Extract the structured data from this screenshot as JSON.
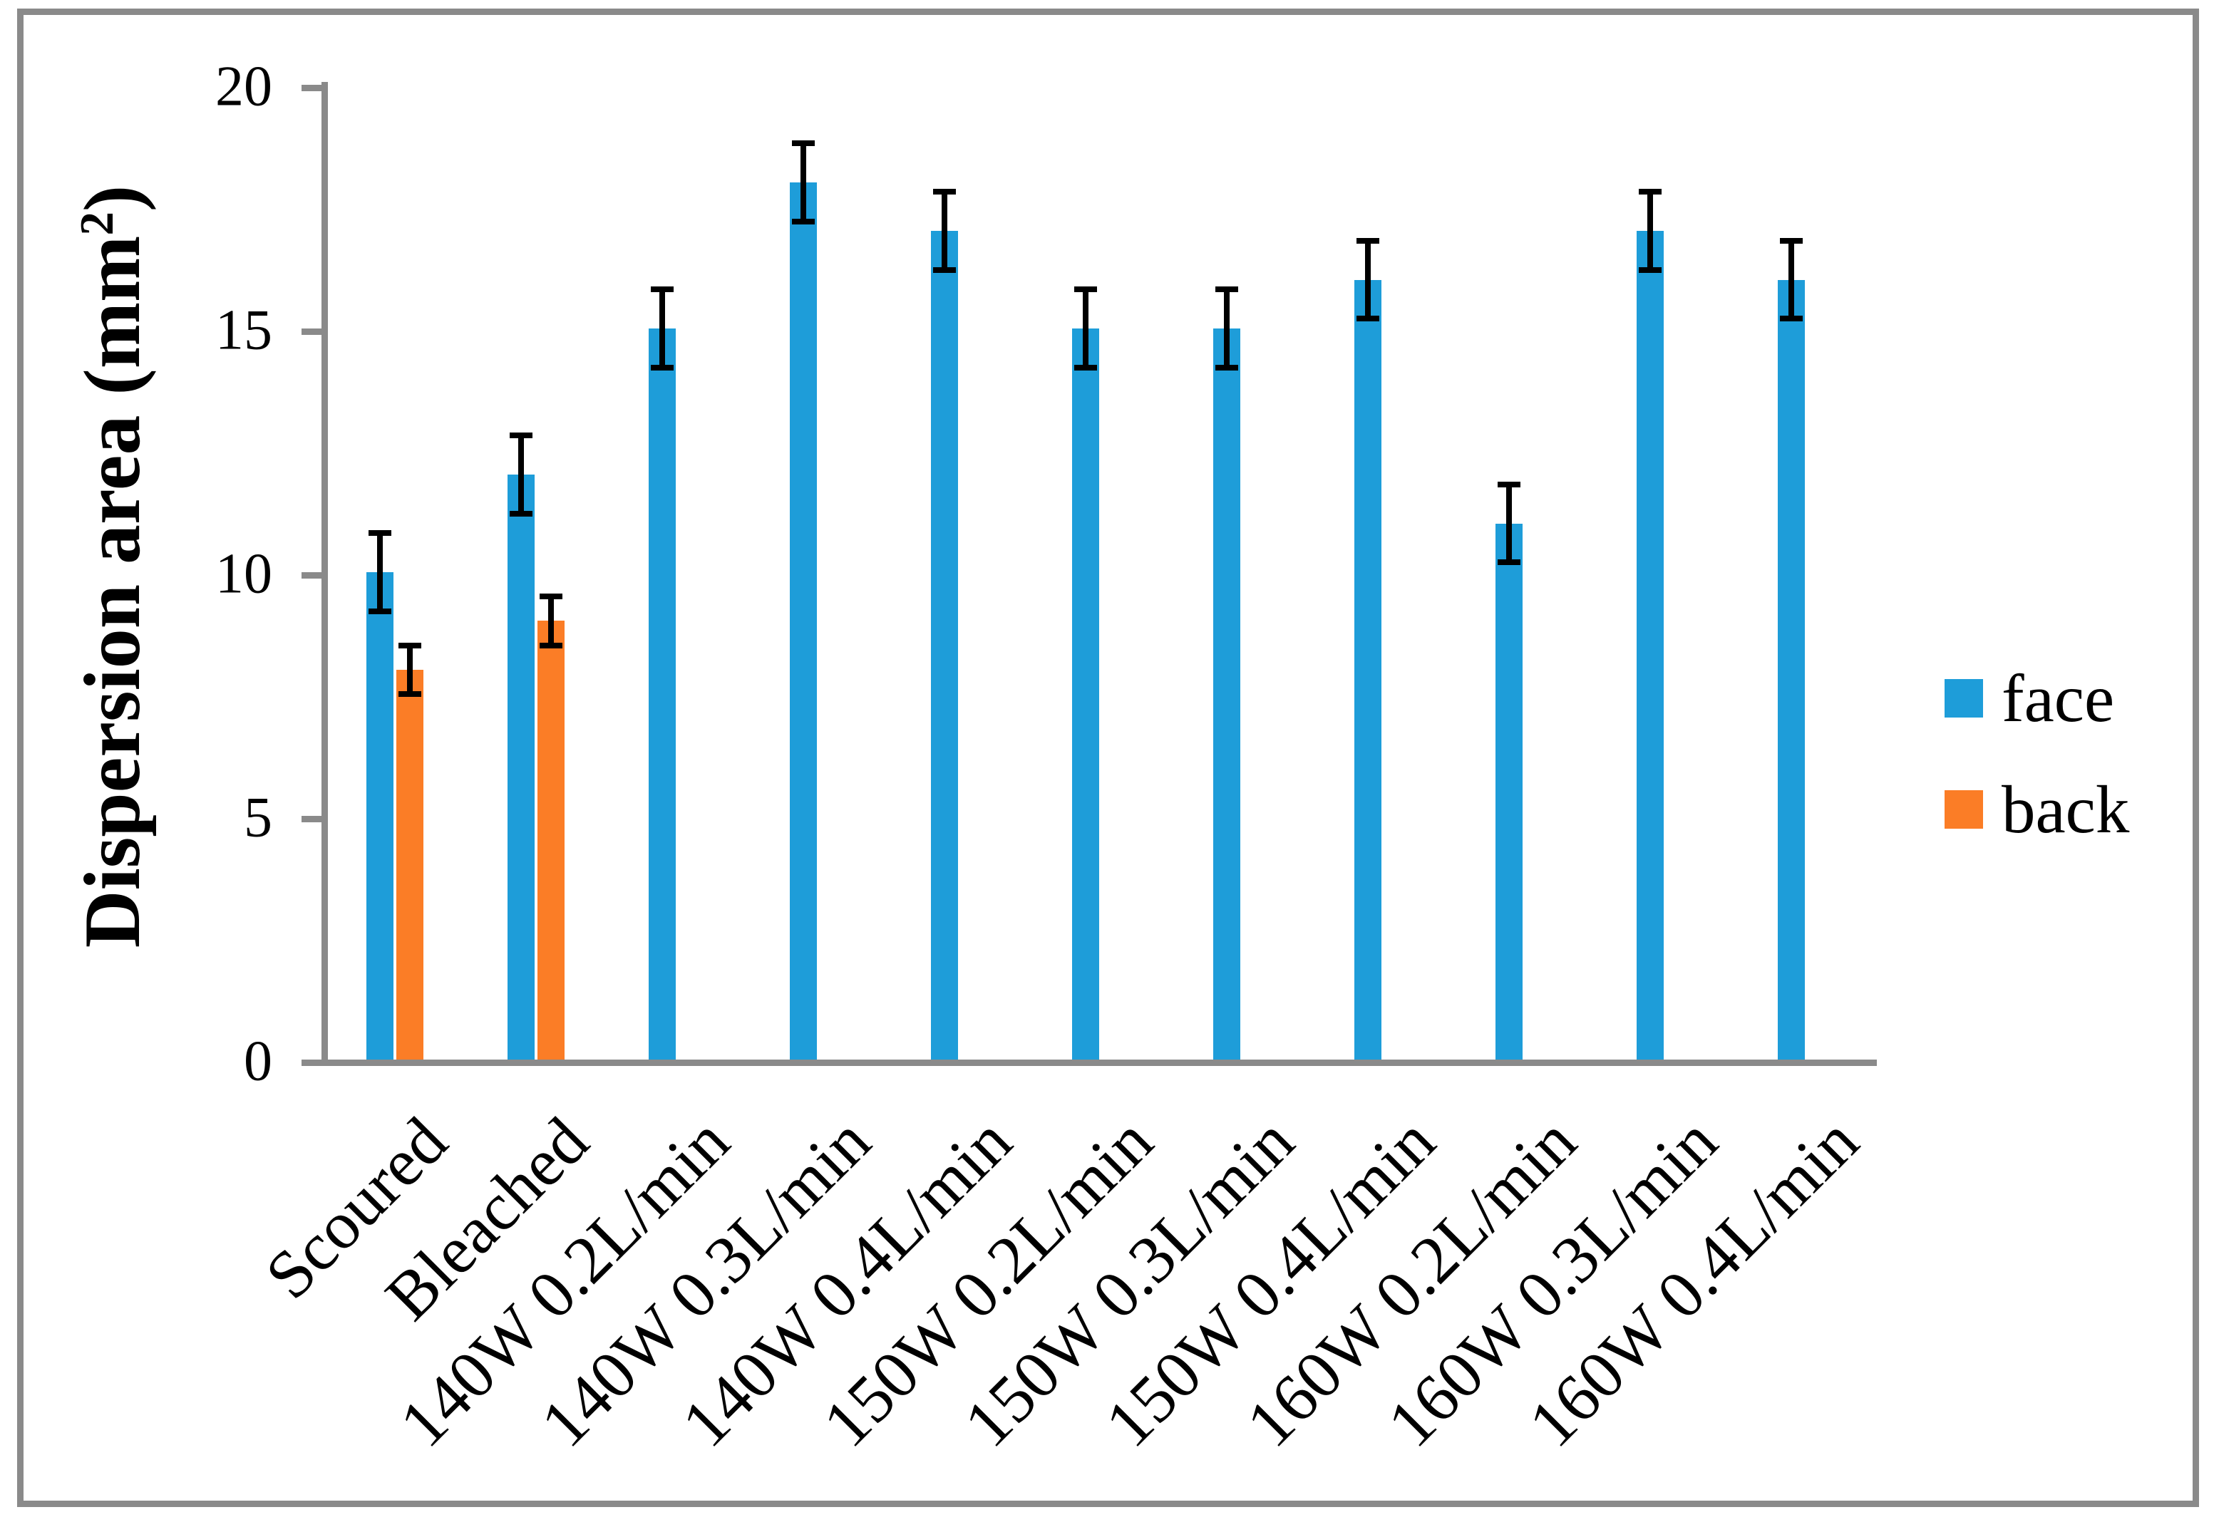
{
  "figure": {
    "background": "#FFFFFF",
    "border_color": "#8A8A8A",
    "axis_color": "#8A8A8A",
    "error_bar_color": "#000000",
    "text_color": "#000000"
  },
  "chart_data": {
    "type": "bar",
    "title": "",
    "xlabel": "",
    "ylabel": {
      "text": "Dispersion area (mm²)",
      "pre": "Dispersion area (mm",
      "sup": "2",
      "post": ")"
    },
    "categories": [
      "Scoured",
      "Bleached",
      "140W 0.2L/min",
      "140W 0.3L/min",
      "140W 0.4L/min",
      "150W 0.2L/min",
      "150W 0.3L/min",
      "150W 0.4L/min",
      "160W 0.2L/min",
      "160W 0.3L/min",
      "160W 0.4L/min"
    ],
    "series": [
      {
        "name": "face",
        "color": "#1E9DD9",
        "values": [
          10,
          12,
          15,
          18,
          17,
          15,
          15,
          16,
          11,
          17,
          16
        ],
        "error": [
          0.8,
          0.8,
          0.8,
          0.8,
          0.8,
          0.8,
          0.8,
          0.8,
          0.8,
          0.8,
          0.8
        ]
      },
      {
        "name": "back",
        "color": "#FB7D26",
        "values": [
          8,
          9,
          null,
          null,
          null,
          null,
          null,
          null,
          null,
          null,
          null
        ],
        "error": [
          0.5,
          0.5,
          null,
          null,
          null,
          null,
          null,
          null,
          null,
          null,
          null
        ]
      }
    ],
    "yticks": [
      0,
      5,
      10,
      15,
      20
    ],
    "ylim": [
      0,
      20
    ],
    "grid": false,
    "legend_position": "right"
  }
}
